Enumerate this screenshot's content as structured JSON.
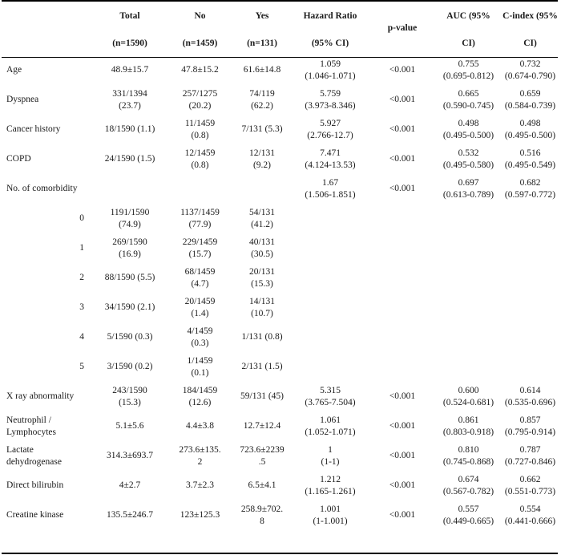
{
  "header": {
    "total": "Total",
    "total_n": "(n=1590)",
    "no": "No",
    "no_n": "(n=1459)",
    "yes": "Yes",
    "yes_n": "(n=131)",
    "hr": "Hazard Ratio",
    "hr_ci": "(95% CI)",
    "pvalue": "p-value",
    "auc": "AUC (95%",
    "auc_ci": "CI)",
    "cindex": "C-index (95%",
    "cindex_ci": "CI)"
  },
  "rows": [
    {
      "name": "Age",
      "total": "48.9±15.7",
      "no": "47.8±15.2",
      "yes": "61.6±14.8",
      "hr": "1.059\n(1.046-1.071)",
      "p": "<0.001",
      "auc": "0.755\n(0.695-0.812)",
      "cindex": "0.732\n(0.674-0.790)"
    },
    {
      "name": "Dyspnea",
      "total": "331/1394\n(23.7)",
      "no": "257/1275\n(20.2)",
      "yes": "74/119\n(62.2)",
      "hr": "5.759\n(3.973-8.346)",
      "p": "<0.001",
      "auc": "0.665\n(0.590-0.745)",
      "cindex": "0.659\n(0.584-0.739)"
    },
    {
      "name": "Cancer history",
      "total": "18/1590 (1.1)",
      "no": "11/1459\n(0.8)",
      "yes": "7/131 (5.3)",
      "hr": "5.927\n(2.766-12.7)",
      "p": "<0.001",
      "auc": "0.498\n(0.495-0.500)",
      "cindex": "0.498\n(0.495-0.500)"
    },
    {
      "name": "COPD",
      "total": "24/1590 (1.5)",
      "no": "12/1459\n(0.8)",
      "yes": "12/131\n(9.2)",
      "hr": "7.471\n(4.124-13.53)",
      "p": "<0.001",
      "auc": "0.532\n(0.495-0.580)",
      "cindex": "0.516\n(0.495-0.549)"
    },
    {
      "name": "No. of comorbidity",
      "total": "",
      "no": "",
      "yes": "",
      "hr": "1.67\n(1.506-1.851)",
      "p": "<0.001",
      "auc": "0.697\n(0.613-0.789)",
      "cindex": "0.682\n(0.597-0.772)"
    },
    {
      "level": "0",
      "total": "1191/1590\n(74.9)",
      "no": "1137/1459\n(77.9)",
      "yes": "54/131\n(41.2)",
      "hr": "",
      "p": "",
      "auc": "",
      "cindex": ""
    },
    {
      "level": "1",
      "total": "269/1590\n(16.9)",
      "no": "229/1459\n(15.7)",
      "yes": "40/131\n(30.5)",
      "hr": "",
      "p": "",
      "auc": "",
      "cindex": ""
    },
    {
      "level": "2",
      "total": "88/1590 (5.5)",
      "no": "68/1459\n(4.7)",
      "yes": "20/131\n(15.3)",
      "hr": "",
      "p": "",
      "auc": "",
      "cindex": ""
    },
    {
      "level": "3",
      "total": "34/1590 (2.1)",
      "no": "20/1459\n(1.4)",
      "yes": "14/131\n(10.7)",
      "hr": "",
      "p": "",
      "auc": "",
      "cindex": ""
    },
    {
      "level": "4",
      "total": "5/1590 (0.3)",
      "no": "4/1459\n(0.3)",
      "yes": "1/131 (0.8)",
      "hr": "",
      "p": "",
      "auc": "",
      "cindex": ""
    },
    {
      "level": "5",
      "total": "3/1590 (0.2)",
      "no": "1/1459\n(0.1)",
      "yes": "2/131 (1.5)",
      "hr": "",
      "p": "",
      "auc": "",
      "cindex": ""
    },
    {
      "name": "X ray abnormality",
      "total": "243/1590\n(15.3)",
      "no": "184/1459\n(12.6)",
      "yes": "59/131 (45)",
      "hr": "5.315\n(3.765-7.504)",
      "p": "<0.001",
      "auc": "0.600\n(0.524-0.681)",
      "cindex": "0.614\n(0.535-0.696)"
    },
    {
      "name": "Neutrophil /\nLymphocytes",
      "total": "5.1±5.6",
      "no": "4.4±3.8",
      "yes": "12.7±12.4",
      "hr": "1.061\n(1.052-1.071)",
      "p": "<0.001",
      "auc": "0.861\n(0.803-0.918)",
      "cindex": "0.857\n(0.795-0.914)"
    },
    {
      "name": "Lactate\ndehydrogenase",
      "total": "314.3±693.7",
      "no": "273.6±135.\n2",
      "yes": "723.6±2239\n.5",
      "hr": "1\n(1-1)",
      "p": "<0.001",
      "auc": "0.810\n(0.745-0.868)",
      "cindex": "0.787\n(0.727-0.846)"
    },
    {
      "name": "Direct bilirubin",
      "total": "4±2.7",
      "no": "3.7±2.3",
      "yes": "6.5±4.1",
      "hr": "1.212\n(1.165-1.261)",
      "p": "<0.001",
      "auc": "0.674\n(0.567-0.782)",
      "cindex": "0.662\n(0.551-0.773)"
    },
    {
      "name": "Creatine kinase",
      "total": "135.5±246.7",
      "no": "123±125.3",
      "yes": "258.9±702.\n8",
      "hr": "1.001\n(1-1.001)",
      "p": "<0.001",
      "auc": "0.557\n(0.449-0.665)",
      "cindex": "0.554\n(0.441-0.666)"
    }
  ]
}
